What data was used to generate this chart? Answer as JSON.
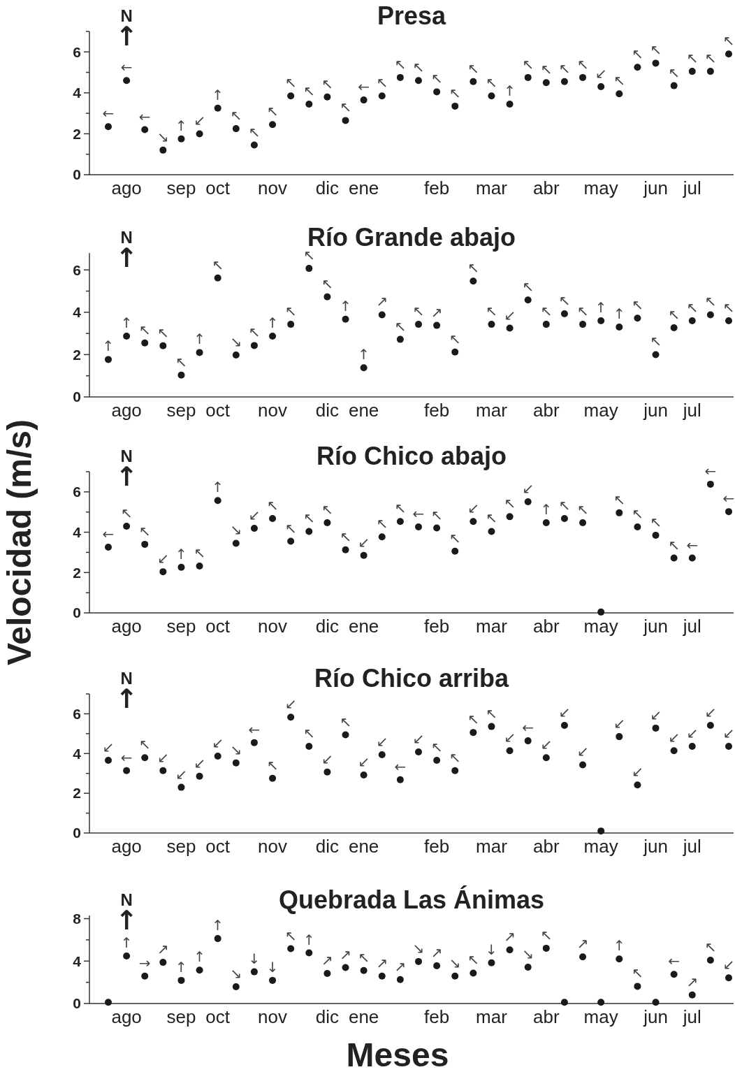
{
  "chart_data": [
    {
      "type": "scatter",
      "title": "Presa",
      "marker": "circle",
      "color": "#1a1a1a",
      "ylim": [
        0,
        7
      ],
      "categories": [
        null,
        "ago",
        null,
        null,
        "sep",
        null,
        "oct",
        null,
        null,
        "nov",
        null,
        null,
        "dic",
        null,
        "ene",
        null,
        null,
        null,
        "feb",
        null,
        null,
        "mar",
        null,
        null,
        "abr",
        null,
        null,
        "may",
        null,
        null,
        "jun",
        null,
        "jul",
        null,
        null
      ],
      "yticks": [
        0,
        2,
        4,
        6,
        {
          "value": 1,
          "label": null
        },
        {
          "value": 3,
          "label": null
        },
        {
          "value": 5,
          "label": null
        },
        {
          "value": 7,
          "label": null
        }
      ],
      "values": [
        2.35,
        4.6,
        2.2,
        1.2,
        1.75,
        2.0,
        3.25,
        2.25,
        1.45,
        2.45,
        3.85,
        3.45,
        3.8,
        2.65,
        3.65,
        3.85,
        4.75,
        4.6,
        4.05,
        3.35,
        4.55,
        3.85,
        3.45,
        4.75,
        4.5,
        4.55,
        4.75,
        4.3,
        3.95,
        5.25,
        5.45,
        4.35,
        5.05,
        5.05,
        5.9
      ],
      "value_labels": [
        "←",
        "←",
        "←",
        "↘",
        "↑",
        "↙",
        "↑",
        "↖",
        "↖",
        "↖",
        "↖",
        "↖",
        "↖",
        "↖",
        "←",
        "↖",
        "↖",
        "↖",
        "↖",
        "↖",
        "↖",
        "↖",
        "↑",
        "↖",
        "↖",
        "↖",
        "↖",
        "↙",
        "↖",
        "↖",
        "↖",
        "↖",
        "↖",
        "↖",
        "↖"
      ],
      "annotations": [
        "N",
        "↑"
      ]
    },
    {
      "type": "scatter",
      "title": "Río Grande abajo",
      "marker": "circle",
      "color": "#1a1a1a",
      "ylim": [
        0,
        6.8
      ],
      "categories": [
        null,
        "ago",
        null,
        null,
        "sep",
        null,
        "oct",
        null,
        null,
        "nov",
        null,
        null,
        "dic",
        null,
        "ene",
        null,
        null,
        null,
        "feb",
        null,
        null,
        "mar",
        null,
        null,
        "abr",
        null,
        null,
        "may",
        null,
        null,
        "jun",
        null,
        "jul",
        null,
        null
      ],
      "yticks": [
        0,
        2,
        4,
        6,
        {
          "value": 1,
          "label": null
        },
        {
          "value": 3,
          "label": null
        },
        {
          "value": 5,
          "label": null
        }
      ],
      "values": [
        1.77,
        2.87,
        2.55,
        2.42,
        1.03,
        2.1,
        5.62,
        1.98,
        2.43,
        2.87,
        3.43,
        6.07,
        4.73,
        3.67,
        1.38,
        3.88,
        2.72,
        3.43,
        3.38,
        2.12,
        5.47,
        3.43,
        3.25,
        4.58,
        3.43,
        3.93,
        3.43,
        3.6,
        3.3,
        3.72,
        2.0,
        3.27,
        3.6,
        3.88,
        3.6
      ],
      "value_labels": [
        "↑",
        "↑",
        "↖",
        "↖",
        "↖",
        "↑",
        "↖",
        "↘",
        "↖",
        "↑",
        "↖",
        "↖",
        "↖",
        "↑",
        "↑",
        "↗",
        "↖",
        "↖",
        "↗",
        "↖",
        "↖",
        "↖",
        "↙",
        "↖",
        "↖",
        "↖",
        "↖",
        "↑",
        "↑",
        "↖",
        "↖",
        "↖",
        "↖",
        "↖",
        "↖"
      ],
      "annotations": [
        "N",
        "↑"
      ]
    },
    {
      "type": "scatter",
      "title": "Río Chico abajo",
      "marker": "circle",
      "color": "#1a1a1a",
      "ylim": [
        0,
        7
      ],
      "ylabel": "Velocidad (m/s)",
      "categories": [
        null,
        "ago",
        null,
        null,
        "sep",
        null,
        "oct",
        null,
        null,
        "nov",
        null,
        null,
        "dic",
        null,
        "ene",
        null,
        null,
        null,
        "feb",
        null,
        null,
        "mar",
        null,
        null,
        "abr",
        null,
        null,
        "may",
        null,
        null,
        "jun",
        null,
        "jul",
        null,
        null
      ],
      "yticks": [
        0,
        2,
        4,
        6,
        {
          "value": 1,
          "label": null
        },
        {
          "value": 3,
          "label": null
        },
        {
          "value": 5,
          "label": null
        },
        {
          "value": 7,
          "label": null
        }
      ],
      "values": [
        3.26,
        4.3,
        3.4,
        2.04,
        2.26,
        2.32,
        5.57,
        3.45,
        4.19,
        4.68,
        3.55,
        4.04,
        4.47,
        3.13,
        2.85,
        3.77,
        4.53,
        4.26,
        4.21,
        3.06,
        4.53,
        4.04,
        4.77,
        5.51,
        4.47,
        4.68,
        4.47,
        0.04,
        4.96,
        4.26,
        3.85,
        2.72,
        2.72,
        6.38,
        5.02
      ],
      "value_labels": [
        "←",
        "↖",
        "↖",
        "↙",
        "↑",
        "↖",
        "↑",
        "↘",
        "↙",
        "↖",
        "↖",
        "↖",
        "↖",
        "↖",
        "↙",
        "↖",
        "↖",
        "←",
        "↖",
        "↖",
        "↙",
        "↖",
        "↖",
        "↙",
        "↑",
        "↖",
        "↖",
        null,
        "↖",
        "↖",
        "↖",
        "↖",
        "←",
        "←",
        "←"
      ],
      "annotations": [
        "N",
        "↑"
      ]
    },
    {
      "type": "scatter",
      "title": "Río Chico arriba",
      "marker": "circle",
      "color": "#1a1a1a",
      "ylim": [
        0,
        7
      ],
      "categories": [
        null,
        "ago",
        null,
        null,
        "sep",
        null,
        "oct",
        null,
        null,
        "nov",
        null,
        null,
        "dic",
        null,
        "ene",
        null,
        null,
        null,
        "feb",
        null,
        null,
        "mar",
        null,
        null,
        "abr",
        null,
        null,
        "may",
        null,
        null,
        "jun",
        null,
        "jul",
        null,
        null
      ],
      "yticks": [
        0,
        2,
        4,
        6,
        {
          "value": 1,
          "label": null
        },
        {
          "value": 3,
          "label": null
        },
        {
          "value": 5,
          "label": null
        },
        {
          "value": 7,
          "label": null
        }
      ],
      "values": [
        3.66,
        3.14,
        3.79,
        3.14,
        2.3,
        2.86,
        3.87,
        3.53,
        4.55,
        2.75,
        5.83,
        4.36,
        3.07,
        4.94,
        2.92,
        3.94,
        2.68,
        4.08,
        3.66,
        3.14,
        5.06,
        5.36,
        4.14,
        4.64,
        3.79,
        5.42,
        3.43,
        0.1,
        4.85,
        2.42,
        5.28,
        4.14,
        4.36,
        5.42,
        4.36
      ],
      "value_labels": [
        "↙",
        "←",
        "↖",
        "↙",
        "↙",
        "↙",
        "↙",
        "↘",
        "←",
        "↖",
        "↙",
        "↖",
        "↙",
        "↖",
        "↙",
        "↙",
        "←",
        "↙",
        "↖",
        "↖",
        "↖",
        "↖",
        "↙",
        "←",
        "↙",
        "↙",
        "↙",
        null,
        "↙",
        "↙",
        "↙",
        "↙",
        "↙",
        "↙",
        "↙"
      ],
      "annotations": [
        "N",
        "↑"
      ]
    },
    {
      "type": "scatter",
      "title": "Quebrada Las Ánimas",
      "marker": "circle",
      "color": "#1a1a1a",
      "ylim": [
        0,
        8.3
      ],
      "xlabel": "Meses",
      "categories": [
        null,
        "ago",
        null,
        null,
        "sep",
        null,
        "oct",
        null,
        null,
        "nov",
        null,
        null,
        "dic",
        null,
        "ene",
        null,
        null,
        null,
        "feb",
        null,
        null,
        "mar",
        null,
        null,
        "abr",
        null,
        null,
        "may",
        null,
        null,
        "jun",
        null,
        "jul",
        null,
        null
      ],
      "yticks": [
        0,
        4,
        8,
        {
          "value": 2,
          "label": null
        },
        {
          "value": 6,
          "label": null
        }
      ],
      "values": [
        0.12,
        4.48,
        2.59,
        3.88,
        2.18,
        3.15,
        6.12,
        1.58,
        2.99,
        2.18,
        5.17,
        4.77,
        2.83,
        3.39,
        3.11,
        2.59,
        2.26,
        3.96,
        3.56,
        2.59,
        2.87,
        3.84,
        5.05,
        3.43,
        5.21,
        0.12,
        4.4,
        0.12,
        4.2,
        1.62,
        0.12,
        2.75,
        0.81,
        4.08,
        2.42
      ],
      "value_labels": [
        null,
        "↑",
        "→",
        "↗",
        "↑",
        "↑",
        "↑",
        "↘",
        "↓",
        "↓",
        "↖",
        "↑",
        "↗",
        "↗",
        "↖",
        "↗",
        "↗",
        "↘",
        "↗",
        "↘",
        "↖",
        "↓",
        "↗",
        "↘",
        "↖",
        null,
        "↗",
        null,
        "↑",
        "↖",
        null,
        "←",
        "↗",
        "↖",
        "↙"
      ],
      "annotations": [
        "N",
        "↑"
      ]
    }
  ]
}
